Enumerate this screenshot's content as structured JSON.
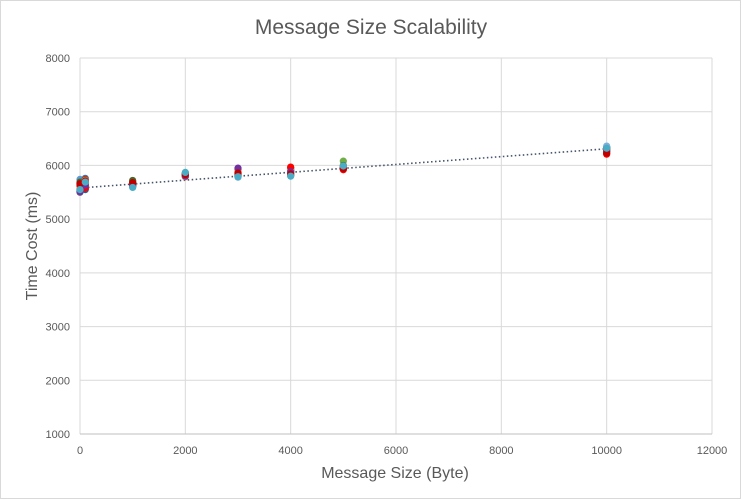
{
  "chart_data": {
    "type": "scatter",
    "title": "Message Size Scalability",
    "xlabel": "Message Size (Byte)",
    "ylabel": "Time Cost (ms)",
    "xlim": [
      0,
      12000
    ],
    "ylim": [
      1000,
      8000
    ],
    "xticks": [
      0,
      2000,
      4000,
      6000,
      8000,
      10000,
      12000
    ],
    "yticks": [
      1000,
      2000,
      3000,
      4000,
      5000,
      6000,
      7000,
      8000
    ],
    "grid": true,
    "legend": "none",
    "trendline": {
      "style": "dotted",
      "color": "#44546a",
      "from": [
        0,
        5580
      ],
      "to": [
        10000,
        6310
      ]
    },
    "series": [
      {
        "color": "#5b9bd5",
        "points": [
          [
            0,
            5740
          ],
          [
            100,
            5610
          ],
          [
            1000,
            5650
          ],
          [
            2000,
            5830
          ],
          [
            3000,
            5800
          ],
          [
            4000,
            5870
          ],
          [
            5000,
            5970
          ],
          [
            10000,
            6330
          ]
        ]
      },
      {
        "color": "#ed7d31",
        "points": [
          [
            0,
            5560
          ],
          [
            100,
            5700
          ],
          [
            1000,
            5620
          ],
          [
            2000,
            5800
          ],
          [
            3000,
            5860
          ],
          [
            4000,
            5900
          ],
          [
            5000,
            5950
          ],
          [
            10000,
            6240
          ]
        ]
      },
      {
        "color": "#a5a5a5",
        "points": [
          [
            0,
            5600
          ],
          [
            100,
            5680
          ],
          [
            1000,
            5680
          ],
          [
            2000,
            5820
          ],
          [
            3000,
            5830
          ],
          [
            4000,
            5860
          ],
          [
            5000,
            5990
          ],
          [
            10000,
            6280
          ]
        ]
      },
      {
        "color": "#ffc000",
        "points": [
          [
            0,
            5620
          ],
          [
            100,
            5650
          ],
          [
            1000,
            5640
          ],
          [
            2000,
            5790
          ],
          [
            3000,
            5880
          ],
          [
            4000,
            5920
          ],
          [
            5000,
            5960
          ],
          [
            10000,
            6300
          ]
        ]
      },
      {
        "color": "#4472c4",
        "points": [
          [
            0,
            5540
          ],
          [
            100,
            5760
          ],
          [
            1000,
            5610
          ],
          [
            2000,
            5840
          ],
          [
            3000,
            5810
          ],
          [
            4000,
            5940
          ],
          [
            5000,
            5940
          ],
          [
            10000,
            6270
          ]
        ]
      },
      {
        "color": "#70ad47",
        "points": [
          [
            0,
            5580
          ],
          [
            100,
            5590
          ],
          [
            1000,
            5710
          ],
          [
            2000,
            5800
          ],
          [
            3000,
            5850
          ],
          [
            4000,
            5880
          ],
          [
            5000,
            6080
          ],
          [
            10000,
            6310
          ]
        ]
      },
      {
        "color": "#264478",
        "points": [
          [
            0,
            5520
          ],
          [
            100,
            5620
          ],
          [
            1000,
            5660
          ],
          [
            2000,
            5820
          ],
          [
            3000,
            5900
          ],
          [
            4000,
            5820
          ],
          [
            5000,
            5980
          ],
          [
            10000,
            6260
          ]
        ]
      },
      {
        "color": "#9e480e",
        "points": [
          [
            0,
            5610
          ],
          [
            100,
            5740
          ],
          [
            1000,
            5630
          ],
          [
            2000,
            5810
          ],
          [
            3000,
            5920
          ],
          [
            4000,
            5960
          ],
          [
            5000,
            5930
          ],
          [
            10000,
            6290
          ]
        ]
      },
      {
        "color": "#636363",
        "points": [
          [
            0,
            5500
          ],
          [
            100,
            5570
          ],
          [
            1000,
            5690
          ],
          [
            2000,
            5830
          ],
          [
            3000,
            5840
          ],
          [
            4000,
            5900
          ],
          [
            5000,
            5960
          ],
          [
            10000,
            6320
          ]
        ]
      },
      {
        "color": "#997300",
        "points": [
          [
            0,
            5570
          ],
          [
            100,
            5600
          ],
          [
            1000,
            5650
          ],
          [
            2000,
            5790
          ],
          [
            3000,
            5870
          ],
          [
            4000,
            5810
          ],
          [
            5000,
            5970
          ],
          [
            10000,
            6250
          ]
        ]
      },
      {
        "color": "#255e91",
        "points": [
          [
            0,
            5650
          ],
          [
            100,
            5550
          ],
          [
            1000,
            5670
          ],
          [
            2000,
            5850
          ],
          [
            3000,
            5790
          ],
          [
            4000,
            5910
          ],
          [
            5000,
            5950
          ],
          [
            10000,
            6340
          ]
        ]
      },
      {
        "color": "#43682b",
        "points": [
          [
            0,
            5690
          ],
          [
            100,
            5660
          ],
          [
            1000,
            5720
          ],
          [
            2000,
            5860
          ],
          [
            3000,
            5820
          ],
          [
            4000,
            5850
          ],
          [
            5000,
            6000
          ],
          [
            10000,
            6300
          ]
        ]
      },
      {
        "color": "#7cafdd",
        "points": [
          [
            0,
            5530
          ],
          [
            100,
            5640
          ],
          [
            1000,
            5600
          ],
          [
            2000,
            5810
          ],
          [
            3000,
            5780
          ],
          [
            4000,
            5890
          ],
          [
            5000,
            5950
          ],
          [
            10000,
            6360
          ]
        ]
      },
      {
        "color": "#f1975a",
        "points": [
          [
            0,
            5590
          ],
          [
            100,
            5720
          ],
          [
            1000,
            5660
          ],
          [
            2000,
            5790
          ],
          [
            3000,
            5890
          ],
          [
            4000,
            5930
          ],
          [
            5000,
            5980
          ],
          [
            10000,
            6280
          ]
        ]
      },
      {
        "color": "#ff0000",
        "points": [
          [
            0,
            5630
          ],
          [
            100,
            5580
          ],
          [
            1000,
            5640
          ],
          [
            2000,
            5820
          ],
          [
            3000,
            5850
          ],
          [
            4000,
            5970
          ],
          [
            5000,
            5920
          ],
          [
            10000,
            6210
          ]
        ]
      },
      {
        "color": "#7030a0",
        "points": [
          [
            0,
            5510
          ],
          [
            100,
            5630
          ],
          [
            1000,
            5620
          ],
          [
            2000,
            5800
          ],
          [
            3000,
            5950
          ],
          [
            4000,
            5880
          ],
          [
            5000,
            5960
          ],
          [
            10000,
            6270
          ]
        ]
      },
      {
        "color": "#c00000",
        "points": [
          [
            0,
            5660
          ],
          [
            100,
            5710
          ],
          [
            1000,
            5680
          ],
          [
            2000,
            5830
          ],
          [
            3000,
            5860
          ],
          [
            4000,
            5840
          ],
          [
            5000,
            5940
          ],
          [
            10000,
            6230
          ]
        ]
      },
      {
        "color": "#4bacc6",
        "points": [
          [
            0,
            5550
          ],
          [
            100,
            5690
          ],
          [
            1000,
            5590
          ],
          [
            2000,
            5870
          ],
          [
            3000,
            5790
          ],
          [
            4000,
            5800
          ],
          [
            5000,
            5990
          ],
          [
            10000,
            6320
          ]
        ]
      }
    ]
  }
}
